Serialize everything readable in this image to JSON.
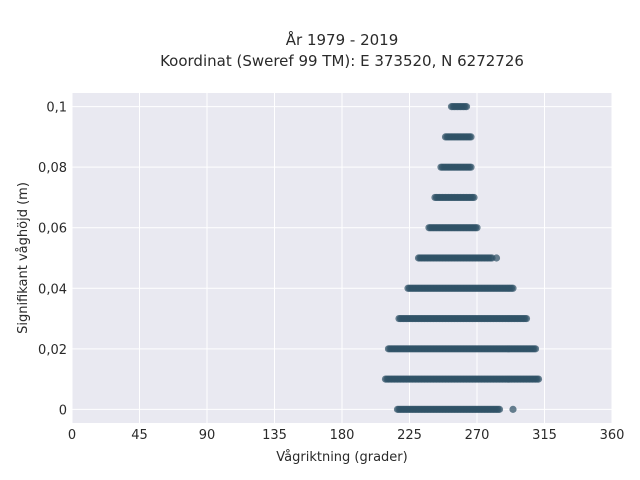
{
  "chart_data": {
    "type": "scatter",
    "title": "År 1979 - 2019",
    "subtitle": "Koordinat (Sweref 99 TM): E 373520, N 6272726",
    "xlabel": "Vågriktning (grader)",
    "ylabel": "Signifikant våghöjd (m)",
    "xlim": [
      0,
      360
    ],
    "ylim": [
      -0.0045,
      0.1045
    ],
    "x_ticks": [
      0,
      45,
      90,
      135,
      180,
      225,
      270,
      315,
      360
    ],
    "y_ticks": [
      0,
      0.02,
      0.04,
      0.06,
      0.08,
      0.1
    ],
    "x_tick_labels": [
      "0",
      "45",
      "90",
      "135",
      "180",
      "225",
      "270",
      "315",
      "360"
    ],
    "y_tick_labels": [
      "0",
      "0,02",
      "0,04",
      "0,06",
      "0,08",
      "0,1"
    ],
    "grid": true,
    "background": "#e9e9f1",
    "point_color": "#2f5266",
    "bands": [
      {
        "y": 0.0,
        "x_min": 217,
        "x_max": 285,
        "outliers": [
          294
        ]
      },
      {
        "y": 0.01,
        "x_min": 209,
        "x_max": 311,
        "outliers": []
      },
      {
        "y": 0.02,
        "x_min": 211,
        "x_max": 309,
        "outliers": []
      },
      {
        "y": 0.03,
        "x_min": 218,
        "x_max": 303,
        "outliers": []
      },
      {
        "y": 0.04,
        "x_min": 224,
        "x_max": 294,
        "outliers": []
      },
      {
        "y": 0.05,
        "x_min": 231,
        "x_max": 280,
        "outliers": [
          283
        ]
      },
      {
        "y": 0.06,
        "x_min": 238,
        "x_max": 270,
        "outliers": []
      },
      {
        "y": 0.07,
        "x_min": 242,
        "x_max": 268,
        "outliers": []
      },
      {
        "y": 0.08,
        "x_min": 246,
        "x_max": 266,
        "outliers": []
      },
      {
        "y": 0.09,
        "x_min": 249,
        "x_max": 266,
        "outliers": []
      },
      {
        "y": 0.1,
        "x_min": 253,
        "x_max": 263,
        "outliers": []
      }
    ]
  }
}
